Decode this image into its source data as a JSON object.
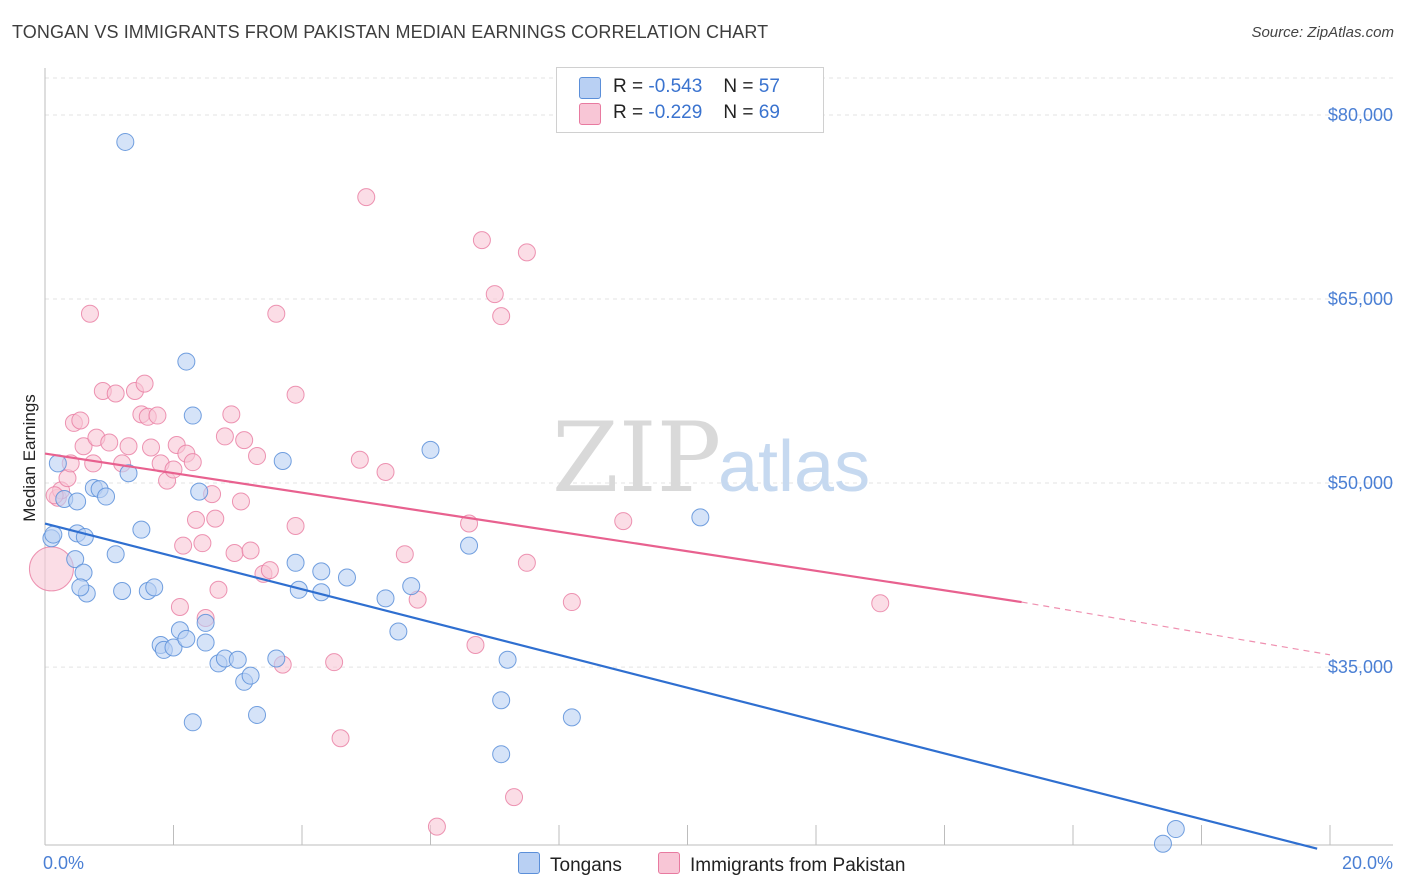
{
  "title": "TONGAN VS IMMIGRANTS FROM PAKISTAN MEDIAN EARNINGS CORRELATION CHART",
  "source": "Source: ZipAtlas.com",
  "watermark": {
    "zip": "ZIP",
    "atlas": "atlas"
  },
  "legend": {
    "tongans": {
      "r_label": "R =",
      "r_value": "-0.543",
      "n_label": "N =",
      "n_value": "57"
    },
    "pakistan": {
      "r_label": "R =",
      "r_value": "-0.229",
      "n_label": "N =",
      "n_value": "69"
    }
  },
  "bottom_legend": {
    "tongans": "Tongans",
    "pakistan": "Immigrants from Pakistan"
  },
  "chart_data": {
    "type": "scatter",
    "xlabel": "",
    "ylabel": "Median Earnings",
    "xlim": [
      0,
      20
    ],
    "ylim": [
      20500,
      83500
    ],
    "x_tick_labels": [
      {
        "x": 0,
        "label": "0.0%"
      },
      {
        "x": 20,
        "label": "20.0%"
      }
    ],
    "y_ticks": [
      {
        "y": 35000,
        "label": "$35,000"
      },
      {
        "y": 50000,
        "label": "$50,000"
      },
      {
        "y": 65000,
        "label": "$65,000"
      },
      {
        "y": 80000,
        "label": "$80,000"
      }
    ],
    "grid": true,
    "legend_position": "top-center",
    "colors": {
      "tongans": "#5b8fd9",
      "tongans_fill": "#b9d0f3",
      "pakistan": "#e87aa0",
      "pakistan_fill": "#f8c6d6"
    },
    "series": [
      {
        "name": "Tongans",
        "trend": {
          "x": [
            0.0,
            19.8
          ],
          "y": [
            46700,
            20200
          ]
        },
        "points": [
          [
            0.1,
            45.5
          ],
          [
            0.13,
            45.8
          ],
          [
            0.2,
            51.6
          ],
          [
            0.3,
            48.7
          ],
          [
            0.47,
            43.8
          ],
          [
            0.5,
            48.5
          ],
          [
            0.5,
            45.9
          ],
          [
            0.6,
            42.7
          ],
          [
            0.65,
            41.0
          ],
          [
            0.62,
            45.6
          ],
          [
            0.76,
            49.6
          ],
          [
            0.85,
            49.5
          ],
          [
            0.95,
            48.9
          ],
          [
            1.1,
            44.2
          ],
          [
            1.2,
            41.2
          ],
          [
            1.3,
            50.8
          ],
          [
            1.5,
            46.2
          ],
          [
            1.6,
            41.2
          ],
          [
            1.7,
            41.5
          ],
          [
            1.8,
            36.8
          ],
          [
            1.85,
            36.4
          ],
          [
            2.0,
            36.6
          ],
          [
            2.1,
            38.0
          ],
          [
            2.2,
            37.3
          ],
          [
            2.3,
            55.5
          ],
          [
            2.3,
            30.5
          ],
          [
            2.4,
            49.3
          ],
          [
            2.5,
            38.6
          ],
          [
            2.5,
            37.0
          ],
          [
            2.7,
            35.3
          ],
          [
            2.8,
            35.7
          ],
          [
            3.0,
            35.6
          ],
          [
            3.1,
            33.8
          ],
          [
            3.2,
            34.3
          ],
          [
            3.3,
            31.1
          ],
          [
            3.6,
            35.7
          ],
          [
            3.9,
            43.5
          ],
          [
            3.95,
            41.3
          ],
          [
            4.3,
            42.8
          ],
          [
            4.3,
            41.1
          ],
          [
            4.7,
            42.3
          ],
          [
            5.3,
            40.6
          ],
          [
            5.5,
            37.9
          ],
          [
            5.7,
            41.6
          ],
          [
            6.6,
            44.9
          ],
          [
            7.1,
            32.3
          ],
          [
            7.1,
            27.9
          ],
          [
            7.2,
            35.6
          ],
          [
            8.2,
            30.9
          ],
          [
            10.2,
            47.2
          ],
          [
            17.4,
            20.6
          ],
          [
            17.6,
            21.8
          ],
          [
            1.25,
            77.8
          ],
          [
            2.2,
            59.9
          ],
          [
            3.7,
            51.8
          ],
          [
            6.0,
            52.7
          ],
          [
            0.55,
            41.5
          ]
        ]
      },
      {
        "name": "Immigrants from Pakistan",
        "trend": {
          "x": [
            0.0,
            15.2
          ],
          "y": [
            52400,
            40300
          ],
          "dashed_to": {
            "x": 20.0,
            "y": 36000
          }
        },
        "points": [
          [
            0.1,
            43.0
          ],
          [
            0.2,
            48.8
          ],
          [
            0.25,
            49.4
          ],
          [
            0.35,
            50.4
          ],
          [
            0.4,
            51.6
          ],
          [
            0.45,
            54.9
          ],
          [
            0.55,
            55.1
          ],
          [
            0.6,
            53.0
          ],
          [
            0.7,
            63.8
          ],
          [
            0.8,
            53.7
          ],
          [
            0.9,
            57.5
          ],
          [
            1.0,
            53.3
          ],
          [
            1.1,
            57.3
          ],
          [
            1.2,
            51.6
          ],
          [
            1.3,
            53.0
          ],
          [
            1.4,
            57.5
          ],
          [
            1.5,
            55.6
          ],
          [
            1.55,
            58.1
          ],
          [
            1.6,
            55.4
          ],
          [
            1.65,
            52.9
          ],
          [
            1.75,
            55.5
          ],
          [
            1.8,
            51.6
          ],
          [
            1.9,
            50.2
          ],
          [
            2.0,
            51.1
          ],
          [
            2.05,
            53.1
          ],
          [
            2.1,
            39.9
          ],
          [
            2.15,
            44.9
          ],
          [
            2.2,
            52.4
          ],
          [
            2.3,
            51.7
          ],
          [
            2.35,
            47.0
          ],
          [
            2.45,
            45.1
          ],
          [
            2.5,
            39.0
          ],
          [
            2.6,
            49.1
          ],
          [
            2.65,
            47.1
          ],
          [
            2.7,
            41.3
          ],
          [
            2.8,
            53.8
          ],
          [
            2.9,
            55.6
          ],
          [
            2.95,
            44.3
          ],
          [
            3.05,
            48.5
          ],
          [
            3.1,
            53.5
          ],
          [
            3.2,
            44.5
          ],
          [
            3.3,
            52.2
          ],
          [
            3.4,
            42.6
          ],
          [
            3.5,
            42.9
          ],
          [
            3.6,
            63.8
          ],
          [
            3.7,
            35.2
          ],
          [
            3.9,
            57.2
          ],
          [
            3.9,
            46.5
          ],
          [
            4.5,
            35.4
          ],
          [
            4.6,
            29.2
          ],
          [
            4.9,
            51.9
          ],
          [
            5.0,
            73.3
          ],
          [
            5.3,
            50.9
          ],
          [
            5.6,
            44.2
          ],
          [
            5.8,
            40.5
          ],
          [
            6.1,
            22.0
          ],
          [
            6.6,
            46.7
          ],
          [
            6.7,
            36.8
          ],
          [
            6.8,
            69.8
          ],
          [
            7.0,
            65.4
          ],
          [
            7.1,
            63.6
          ],
          [
            7.3,
            24.4
          ],
          [
            7.5,
            68.8
          ],
          [
            7.5,
            43.5
          ],
          [
            8.2,
            40.3
          ],
          [
            9.0,
            46.9
          ],
          [
            13.0,
            40.2
          ],
          [
            0.15,
            49.0
          ],
          [
            0.75,
            51.6
          ]
        ]
      }
    ]
  }
}
